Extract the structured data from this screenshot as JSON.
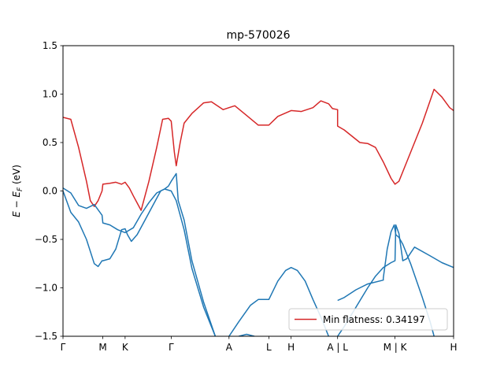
{
  "chart_data": {
    "type": "line",
    "title": "mp-570026",
    "ylabel": "E − E_F (eV)",
    "ylabel_main": "E − E",
    "ylabel_sub": "F",
    "ylabel_unit": " (eV)",
    "xlabel": "",
    "ylim": [
      -1.5,
      1.5
    ],
    "xlim": [
      0,
      1
    ],
    "y_ticks": [
      -1.5,
      -1.0,
      -0.5,
      0.0,
      0.5,
      1.0,
      1.5
    ],
    "y_tick_labels": [
      "−1.5",
      "−1.0",
      "−0.5",
      "0.0",
      "0.5",
      "1.0",
      "1.5"
    ],
    "x_ticks": [
      {
        "x": 0.0,
        "label": "Γ"
      },
      {
        "x": 0.102,
        "label": "M"
      },
      {
        "x": 0.159,
        "label": "K"
      },
      {
        "x": 0.277,
        "label": "Γ"
      },
      {
        "x": 0.425,
        "label": "A"
      },
      {
        "x": 0.527,
        "label": "L"
      },
      {
        "x": 0.584,
        "label": "H"
      },
      {
        "x": 0.703,
        "label": "A | L"
      },
      {
        "x": 0.85,
        "label": "M | K"
      },
      {
        "x": 1.0,
        "label": "H"
      }
    ],
    "grid": false,
    "legend": {
      "position": "bottom-right",
      "entries": [
        {
          "label": "Min flatness: 0.34197",
          "color": "#d62728"
        }
      ]
    },
    "series": [
      {
        "name": "Min flatness: 0.34197",
        "color": "#d62728",
        "points": [
          [
            0.0,
            0.76
          ],
          [
            0.02,
            0.74
          ],
          [
            0.04,
            0.45
          ],
          [
            0.06,
            0.1
          ],
          [
            0.07,
            -0.1
          ],
          [
            0.08,
            -0.16
          ],
          [
            0.09,
            -0.1
          ],
          [
            0.1,
            0.0
          ],
          [
            0.102,
            0.07
          ],
          [
            0.12,
            0.08
          ],
          [
            0.135,
            0.09
          ],
          [
            0.15,
            0.07
          ],
          [
            0.159,
            0.09
          ],
          [
            0.17,
            0.03
          ],
          [
            0.18,
            -0.05
          ],
          [
            0.2,
            -0.2
          ],
          [
            0.22,
            0.1
          ],
          [
            0.24,
            0.45
          ],
          [
            0.255,
            0.74
          ],
          [
            0.27,
            0.75
          ],
          [
            0.277,
            0.72
          ],
          [
            0.285,
            0.4
          ],
          [
            0.29,
            0.26
          ],
          [
            0.3,
            0.5
          ],
          [
            0.31,
            0.7
          ],
          [
            0.33,
            0.8
          ],
          [
            0.36,
            0.91
          ],
          [
            0.38,
            0.92
          ],
          [
            0.41,
            0.84
          ],
          [
            0.425,
            0.86
          ],
          [
            0.44,
            0.88
          ],
          [
            0.47,
            0.78
          ],
          [
            0.5,
            0.68
          ],
          [
            0.527,
            0.68
          ],
          [
            0.55,
            0.77
          ],
          [
            0.584,
            0.83
          ],
          [
            0.61,
            0.82
          ],
          [
            0.64,
            0.86
          ],
          [
            0.66,
            0.93
          ],
          [
            0.68,
            0.9
          ],
          [
            0.69,
            0.85
          ],
          [
            0.703,
            0.84
          ],
          [
            0.703,
            0.67
          ],
          [
            0.72,
            0.63
          ],
          [
            0.76,
            0.5
          ],
          [
            0.78,
            0.49
          ],
          [
            0.8,
            0.45
          ],
          [
            0.82,
            0.3
          ],
          [
            0.84,
            0.13
          ],
          [
            0.85,
            0.07
          ],
          [
            0.86,
            0.1
          ],
          [
            0.88,
            0.3
          ],
          [
            0.92,
            0.7
          ],
          [
            0.95,
            1.05
          ],
          [
            0.97,
            0.97
          ],
          [
            0.99,
            0.86
          ],
          [
            1.0,
            0.83
          ]
        ]
      },
      {
        "color": "#1f77b4",
        "points": [
          [
            0.0,
            0.03
          ],
          [
            0.02,
            -0.02
          ],
          [
            0.04,
            -0.15
          ],
          [
            0.06,
            -0.18
          ],
          [
            0.08,
            -0.14
          ],
          [
            0.1,
            -0.25
          ],
          [
            0.102,
            -0.33
          ],
          [
            0.12,
            -0.35
          ],
          [
            0.14,
            -0.4
          ],
          [
            0.159,
            -0.43
          ],
          [
            0.18,
            -0.38
          ],
          [
            0.2,
            -0.24
          ],
          [
            0.22,
            -0.12
          ],
          [
            0.24,
            -0.02
          ],
          [
            0.26,
            0.02
          ],
          [
            0.277,
            0.0
          ],
          [
            0.29,
            -0.1
          ],
          [
            0.31,
            -0.4
          ],
          [
            0.33,
            -0.8
          ],
          [
            0.36,
            -1.2
          ],
          [
            0.39,
            -1.5
          ]
        ]
      },
      {
        "color": "#1f77b4",
        "points": [
          [
            0.0,
            0.0
          ],
          [
            0.02,
            -0.22
          ],
          [
            0.04,
            -0.32
          ],
          [
            0.06,
            -0.5
          ],
          [
            0.08,
            -0.75
          ],
          [
            0.09,
            -0.78
          ],
          [
            0.1,
            -0.72
          ],
          [
            0.102,
            -0.72
          ],
          [
            0.12,
            -0.7
          ],
          [
            0.135,
            -0.6
          ],
          [
            0.15,
            -0.4
          ],
          [
            0.159,
            -0.39
          ],
          [
            0.165,
            -0.45
          ],
          [
            0.175,
            -0.52
          ],
          [
            0.19,
            -0.45
          ],
          [
            0.21,
            -0.3
          ],
          [
            0.23,
            -0.15
          ],
          [
            0.25,
            0.0
          ],
          [
            0.26,
            0.02
          ],
          [
            0.27,
            0.05
          ],
          [
            0.277,
            0.1
          ],
          [
            0.29,
            0.18
          ],
          [
            0.295,
            -0.1
          ],
          [
            0.31,
            -0.3
          ],
          [
            0.33,
            -0.72
          ],
          [
            0.36,
            -1.15
          ],
          [
            0.39,
            -1.5
          ]
        ]
      },
      {
        "color": "#1f77b4",
        "points": [
          [
            0.45,
            -1.5
          ],
          [
            0.47,
            -1.48
          ],
          [
            0.49,
            -1.5
          ]
        ]
      },
      {
        "color": "#1f77b4",
        "points": [
          [
            0.425,
            -1.5
          ],
          [
            0.45,
            -1.35
          ],
          [
            0.48,
            -1.18
          ],
          [
            0.5,
            -1.12
          ],
          [
            0.527,
            -1.12
          ],
          [
            0.55,
            -0.93
          ],
          [
            0.57,
            -0.82
          ],
          [
            0.584,
            -0.79
          ],
          [
            0.6,
            -0.82
          ],
          [
            0.62,
            -0.93
          ],
          [
            0.64,
            -1.12
          ],
          [
            0.66,
            -1.3
          ],
          [
            0.68,
            -1.5
          ]
        ]
      },
      {
        "color": "#1f77b4",
        "points": [
          [
            0.703,
            -1.13
          ],
          [
            0.72,
            -1.1
          ],
          [
            0.75,
            -1.02
          ],
          [
            0.78,
            -0.96
          ],
          [
            0.82,
            -0.92
          ],
          [
            0.82,
            -0.9
          ],
          [
            0.83,
            -0.6
          ],
          [
            0.84,
            -0.42
          ],
          [
            0.848,
            -0.35
          ],
          [
            0.852,
            -0.45
          ],
          [
            0.86,
            -0.48
          ],
          [
            0.87,
            -0.55
          ],
          [
            0.89,
            -0.75
          ],
          [
            0.92,
            -1.1
          ],
          [
            0.94,
            -1.35
          ],
          [
            0.95,
            -1.5
          ]
        ]
      },
      {
        "color": "#1f77b4",
        "points": [
          [
            0.703,
            -1.5
          ],
          [
            0.72,
            -1.4
          ],
          [
            0.75,
            -1.2
          ],
          [
            0.78,
            -1.0
          ],
          [
            0.8,
            -0.88
          ],
          [
            0.82,
            -0.79
          ],
          [
            0.84,
            -0.74
          ],
          [
            0.85,
            -0.72
          ],
          [
            0.852,
            -0.35
          ],
          [
            0.86,
            -0.44
          ],
          [
            0.87,
            -0.72
          ],
          [
            0.88,
            -0.7
          ],
          [
            0.9,
            -0.58
          ],
          [
            0.94,
            -0.67
          ],
          [
            0.97,
            -0.74
          ],
          [
            1.0,
            -0.79
          ]
        ]
      }
    ]
  }
}
